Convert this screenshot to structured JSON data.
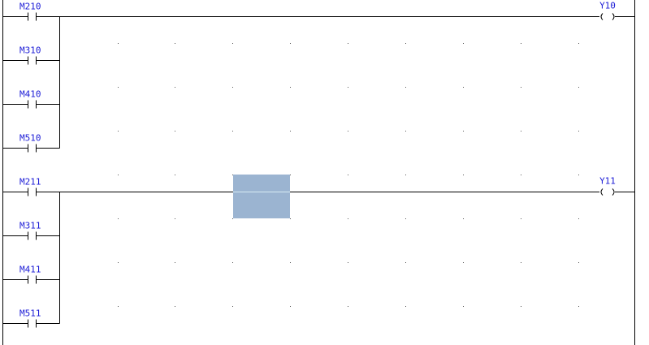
{
  "rungs": [
    {
      "contacts": [
        "M210",
        "M310",
        "M410",
        "M510"
      ],
      "coil": "Y10"
    },
    {
      "contacts": [
        "M211",
        "M311",
        "M411",
        "M511"
      ],
      "coil": "Y11"
    }
  ]
}
